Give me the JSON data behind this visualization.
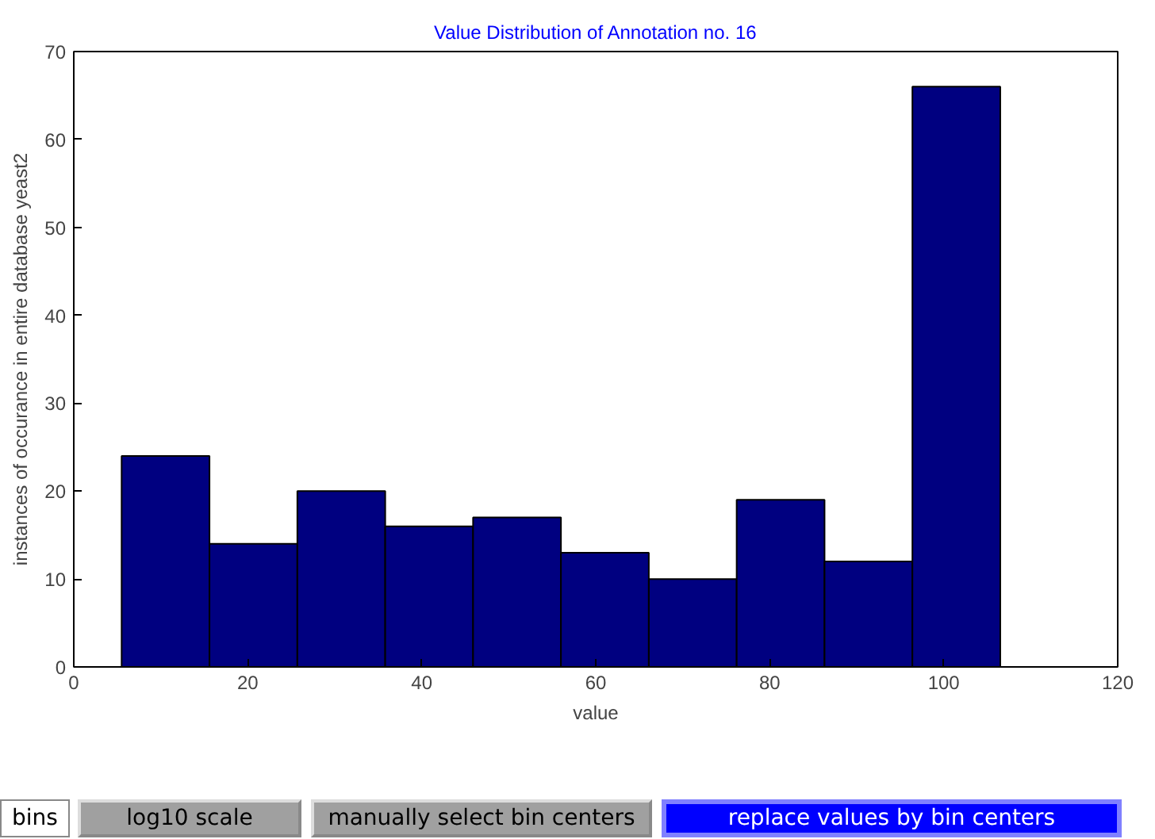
{
  "chart_data": {
    "type": "histogram",
    "title": "Value Distribution of Annotation no. 16",
    "xlabel": "value",
    "ylabel": "instances of occurance in entire database yeast2",
    "bins": [
      5.5,
      15.6,
      25.7,
      35.8,
      45.9,
      56,
      66.1,
      76.2,
      86.3,
      96.4,
      106.5
    ],
    "values": [
      24,
      14,
      20,
      16,
      17,
      13,
      10,
      19,
      12,
      66
    ],
    "color": "#000080",
    "xlim": [
      0,
      120
    ],
    "xticks": [
      0,
      20,
      40,
      60,
      80,
      100,
      120
    ],
    "ylim": [
      0,
      70
    ],
    "yticks": [
      0,
      10,
      20,
      30,
      40,
      50,
      60,
      70
    ],
    "grid": false,
    "annotations": [
      "bins",
      "log10 scale",
      "manually select bin centers",
      "replace values by bin centers"
    ]
  }
}
